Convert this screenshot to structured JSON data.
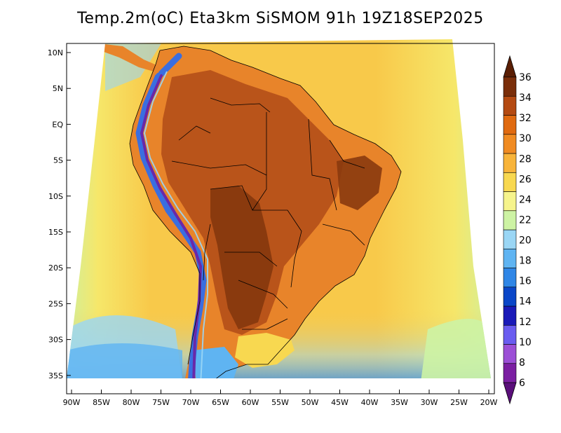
{
  "title": "Temp.2m(oC) Eta3km SiSMOM 91h 19Z18SEP2025",
  "latitude_labels": [
    "10N",
    "5N",
    "EQ",
    "5S",
    "10S",
    "15S",
    "20S",
    "25S",
    "30S",
    "35S"
  ],
  "longitude_labels": [
    "90W",
    "85W",
    "80W",
    "75W",
    "70W",
    "65W",
    "60W",
    "55W",
    "50W",
    "45W",
    "40W",
    "35W",
    "30W",
    "25W",
    "20W"
  ],
  "colorbar": {
    "labels": [
      "6",
      "8",
      "10",
      "12",
      "14",
      "16",
      "18",
      "20",
      "22",
      "24",
      "26",
      "28",
      "30",
      "32",
      "34",
      "36"
    ],
    "colors": [
      "#7b1fa2",
      "#9c4fd6",
      "#6a5cf0",
      "#1a1ab8",
      "#0a46c8",
      "#2f86e6",
      "#5fb4f2",
      "#9ad6f5",
      "#cdf3a4",
      "#f6f48c",
      "#f8d850",
      "#f8b43a",
      "#f08b22",
      "#e06a10",
      "#b44a12",
      "#7a2e0a"
    ],
    "over_color": "#5a1e04",
    "under_color": "#5a0f7a"
  },
  "colors": {
    "ocean_warm": "#f8c94a",
    "ocean_mid": "#f6e76a",
    "ocean_cool": "#cdf0a0",
    "land_hot": "#b9541a",
    "land_very_hot": "#8a3a0e",
    "land_warm": "#e8842a",
    "andes_cold": "#3a6ee0",
    "andes_very_cold": "#6a28a8"
  }
}
